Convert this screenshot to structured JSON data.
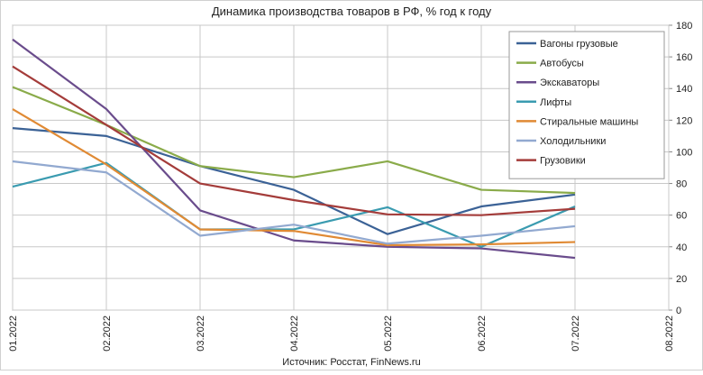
{
  "chart_data": {
    "type": "line",
    "title": "Динамика производства товаров в РФ, % год к году",
    "annotation": "Источник: Росстат, FinNews.ru",
    "categories": [
      "01.2022",
      "02.2022",
      "03.2022",
      "04.2022",
      "05.2022",
      "06.2022",
      "07.2022",
      "08.2022"
    ],
    "series": [
      {
        "name": "Вагоны грузовые",
        "color": "#3b6296",
        "values": [
          115,
          110,
          91,
          76,
          48,
          65.5,
          73,
          null
        ]
      },
      {
        "name": "Автобусы",
        "color": "#8aab4a",
        "values": [
          141,
          117,
          91,
          84,
          94,
          76,
          74,
          null
        ]
      },
      {
        "name": "Экскаваторы",
        "color": "#6a4c8c",
        "values": [
          171,
          127,
          63,
          44,
          40,
          39,
          33,
          null
        ]
      },
      {
        "name": "Лифты",
        "color": "#3a9bb0",
        "values": [
          78,
          93,
          51,
          51,
          65,
          40,
          65.5,
          null
        ]
      },
      {
        "name": "Стиральные машины",
        "color": "#e08a34",
        "values": [
          127,
          92,
          51,
          50,
          41,
          41.5,
          43,
          null
        ]
      },
      {
        "name": "Холодильники",
        "color": "#92a9d0",
        "values": [
          94,
          87,
          47,
          54,
          42,
          47,
          53,
          null
        ]
      },
      {
        "name": "Грузовики",
        "color": "#a43c3a",
        "values": [
          154,
          117,
          80,
          69.5,
          60.5,
          60,
          64,
          null
        ]
      }
    ],
    "ylim": [
      0,
      180
    ],
    "yticks": [
      0,
      20,
      40,
      60,
      80,
      100,
      120,
      140,
      160,
      180
    ],
    "grid": true,
    "legend": "upper right",
    "y_axis_side": "right"
  }
}
